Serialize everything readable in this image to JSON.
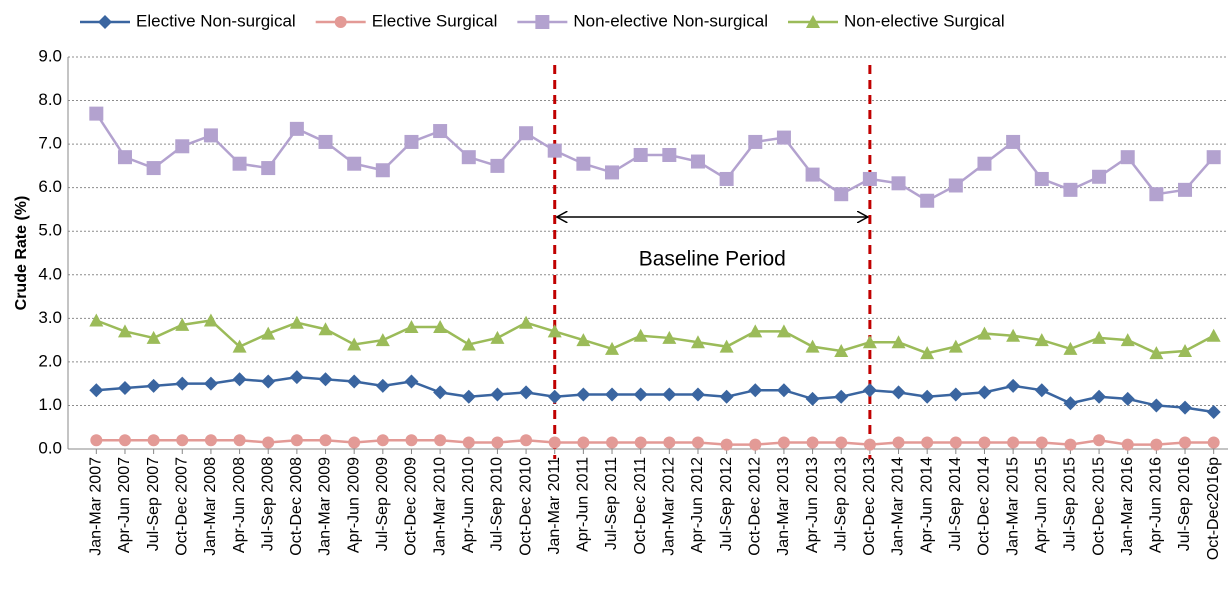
{
  "chart_data": {
    "type": "line",
    "y_label": "Crude Rate (%)",
    "categories": [
      "Jan-Mar 2007",
      "Apr-Jun 2007",
      "Jul-Sep 2007",
      "Oct-Dec 2007",
      "Jan-Mar 2008",
      "Apr-Jun 2008",
      "Jul-Sep 2008",
      "Oct-Dec 2008",
      "Jan-Mar 2009",
      "Apr-Jun 2009",
      "Jul-Sep 2009",
      "Oct-Dec 2009",
      "Jan-Mar 2010",
      "Apr-Jun 2010",
      "Jul-Sep 2010",
      "Oct-Dec 2010",
      "Jan-Mar 2011",
      "Apr-Jun 2011",
      "Jul-Sep 2011",
      "Oct-Dec 2011",
      "Jan-Mar 2012",
      "Apr-Jun 2012",
      "Jul-Sep 2012",
      "Oct-Dec 2012",
      "Jan-Mar 2013",
      "Apr-Jun 2013",
      "Jul-Sep 2013",
      "Oct-Dec 2013",
      "Jan-Mar 2014",
      "Apr-Jun 2014",
      "Jul-Sep 2014",
      "Oct-Dec 2014",
      "Jan-Mar 2015",
      "Apr-Jun 2015",
      "Jul-Sep 2015",
      "Oct-Dec 2015",
      "Jan-Mar 2016",
      "Apr-Jun 2016",
      "Jul-Sep 2016",
      "Oct-Dec2016p"
    ],
    "series": [
      {
        "name": "Elective Non-surgical",
        "color": "#3a65a0",
        "marker": "diamond",
        "values": [
          1.35,
          1.4,
          1.45,
          1.5,
          1.5,
          1.6,
          1.55,
          1.65,
          1.6,
          1.55,
          1.45,
          1.55,
          1.3,
          1.2,
          1.25,
          1.3,
          1.2,
          1.25,
          1.25,
          1.25,
          1.25,
          1.25,
          1.2,
          1.35,
          1.35,
          1.15,
          1.2,
          1.35,
          1.3,
          1.2,
          1.25,
          1.3,
          1.45,
          1.35,
          1.05,
          1.2,
          1.15,
          1.0,
          0.95,
          0.85
        ]
      },
      {
        "name": "Elective Surgical",
        "color": "#e39a96",
        "marker": "circle",
        "values": [
          0.2,
          0.2,
          0.2,
          0.2,
          0.2,
          0.2,
          0.15,
          0.2,
          0.2,
          0.15,
          0.2,
          0.2,
          0.2,
          0.15,
          0.15,
          0.2,
          0.15,
          0.15,
          0.15,
          0.15,
          0.15,
          0.15,
          0.1,
          0.1,
          0.15,
          0.15,
          0.15,
          0.1,
          0.15,
          0.15,
          0.15,
          0.15,
          0.15,
          0.15,
          0.1,
          0.2,
          0.1,
          0.1,
          0.15,
          0.15
        ]
      },
      {
        "name": "Non-elective Non-surgical",
        "color": "#b3a2cf",
        "marker": "square",
        "values": [
          7.7,
          6.7,
          6.45,
          6.95,
          7.2,
          6.55,
          6.45,
          7.35,
          7.05,
          6.55,
          6.4,
          7.05,
          7.3,
          6.7,
          6.5,
          7.25,
          6.85,
          6.55,
          6.35,
          6.75,
          6.75,
          6.6,
          6.2,
          7.05,
          7.15,
          6.3,
          5.85,
          6.2,
          6.1,
          5.7,
          6.05,
          6.55,
          7.05,
          6.2,
          5.95,
          6.25,
          6.7,
          5.85,
          5.95,
          6.7
        ]
      },
      {
        "name": "Non-elective Surgical",
        "color": "#9bbb59",
        "marker": "triangle",
        "values": [
          2.95,
          2.7,
          2.55,
          2.85,
          2.95,
          2.35,
          2.65,
          2.9,
          2.75,
          2.4,
          2.5,
          2.8,
          2.8,
          2.4,
          2.55,
          2.9,
          2.7,
          2.5,
          2.3,
          2.6,
          2.55,
          2.45,
          2.35,
          2.7,
          2.7,
          2.35,
          2.25,
          2.45,
          2.45,
          2.2,
          2.35,
          2.65,
          2.6,
          2.5,
          2.3,
          2.55,
          2.5,
          2.2,
          2.25,
          2.6
        ]
      }
    ],
    "ylim": [
      0,
      9
    ],
    "yticks": [
      {
        "value": 0,
        "label": "0.0"
      },
      {
        "value": 1,
        "label": "1.0"
      },
      {
        "value": 2,
        "label": "2.0"
      },
      {
        "value": 3,
        "label": "3.0"
      },
      {
        "value": 4,
        "label": "4.0"
      },
      {
        "value": 5,
        "label": "5.0"
      },
      {
        "value": 6,
        "label": "6.0"
      },
      {
        "value": 7,
        "label": "7.0"
      },
      {
        "value": 8,
        "label": "8.0"
      },
      {
        "value": 9,
        "label": "9.0"
      }
    ],
    "grid": true,
    "legend": "top",
    "baseline": {
      "label": "Baseline Period",
      "start": "Jan-Mar 2011",
      "end": "Oct-Dec 2013",
      "color": "#c00000"
    }
  }
}
